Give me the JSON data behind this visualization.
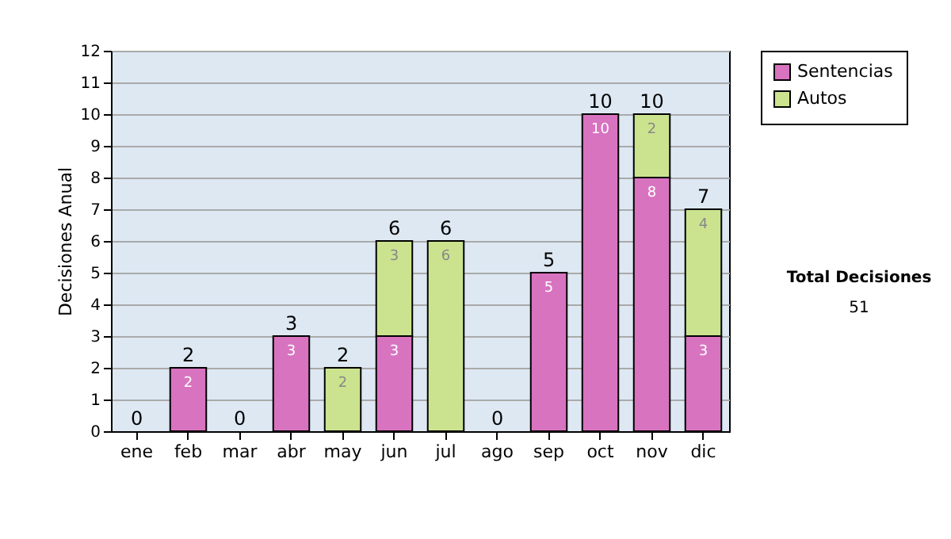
{
  "chart_data": {
    "type": "bar",
    "stacked": true,
    "ylabel": "Decisiones Anual",
    "categories": [
      "ene",
      "feb",
      "mar",
      "abr",
      "may",
      "jun",
      "jul",
      "ago",
      "sep",
      "oct",
      "nov",
      "dic"
    ],
    "series": [
      {
        "name": "Sentencias",
        "color": "#d873c0",
        "values": [
          0,
          2,
          0,
          3,
          0,
          3,
          0,
          0,
          5,
          10,
          8,
          3
        ],
        "value_labels": [
          null,
          "2",
          null,
          "3",
          null,
          "3",
          null,
          null,
          "5",
          "10",
          "8",
          "3"
        ]
      },
      {
        "name": "Autos",
        "color": "#cbe38f",
        "values": [
          0,
          0,
          0,
          0,
          2,
          3,
          6,
          0,
          0,
          0,
          2,
          4
        ],
        "value_labels": [
          null,
          null,
          null,
          null,
          "2",
          "3",
          "6",
          null,
          null,
          null,
          "2",
          "4"
        ]
      }
    ],
    "totals": [
      "0",
      "2",
      "0",
      "3",
      "2",
      "6",
      "6",
      "0",
      "5",
      "10",
      "10",
      "7"
    ],
    "ylim": [
      0,
      12
    ],
    "yticks": [
      0,
      1,
      2,
      3,
      4,
      5,
      6,
      7,
      8,
      9,
      10,
      11,
      12
    ],
    "grid": "y",
    "legend": "right",
    "annotations": [
      "Total Decisiones",
      "51"
    ]
  }
}
